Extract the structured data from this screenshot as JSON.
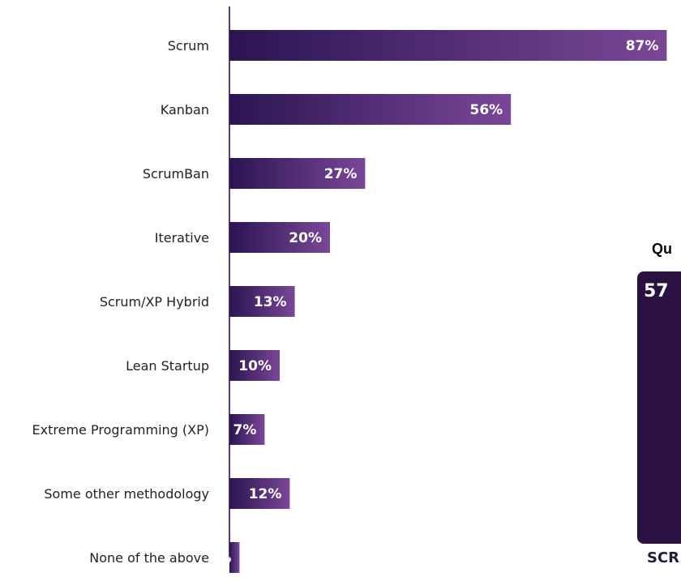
{
  "chart_data": {
    "type": "bar",
    "orientation": "horizontal",
    "categories": [
      "Scrum",
      "Kanban",
      "ScrumBan",
      "Iterative",
      "Scrum/XP Hybrid",
      "Lean Startup",
      "Extreme Programming (XP)",
      "Some other methodology",
      "None of the above"
    ],
    "values": [
      87,
      56,
      27,
      20,
      13,
      10,
      7,
      12,
      2
    ],
    "value_labels": [
      "87%",
      "56%",
      "27%",
      "20%",
      "13%",
      "10%",
      "7%",
      "12%",
      "2%"
    ],
    "xlim": [
      0,
      100
    ],
    "grid": false,
    "legend": "none",
    "colors": {
      "bar_start": "#2b1552",
      "bar_end": "#7a4797",
      "axis": "#5b3a7e"
    }
  },
  "side_panel": {
    "title": "Qu",
    "card_value": "57",
    "caption": "SCR",
    "card_color": "#2a1142"
  }
}
